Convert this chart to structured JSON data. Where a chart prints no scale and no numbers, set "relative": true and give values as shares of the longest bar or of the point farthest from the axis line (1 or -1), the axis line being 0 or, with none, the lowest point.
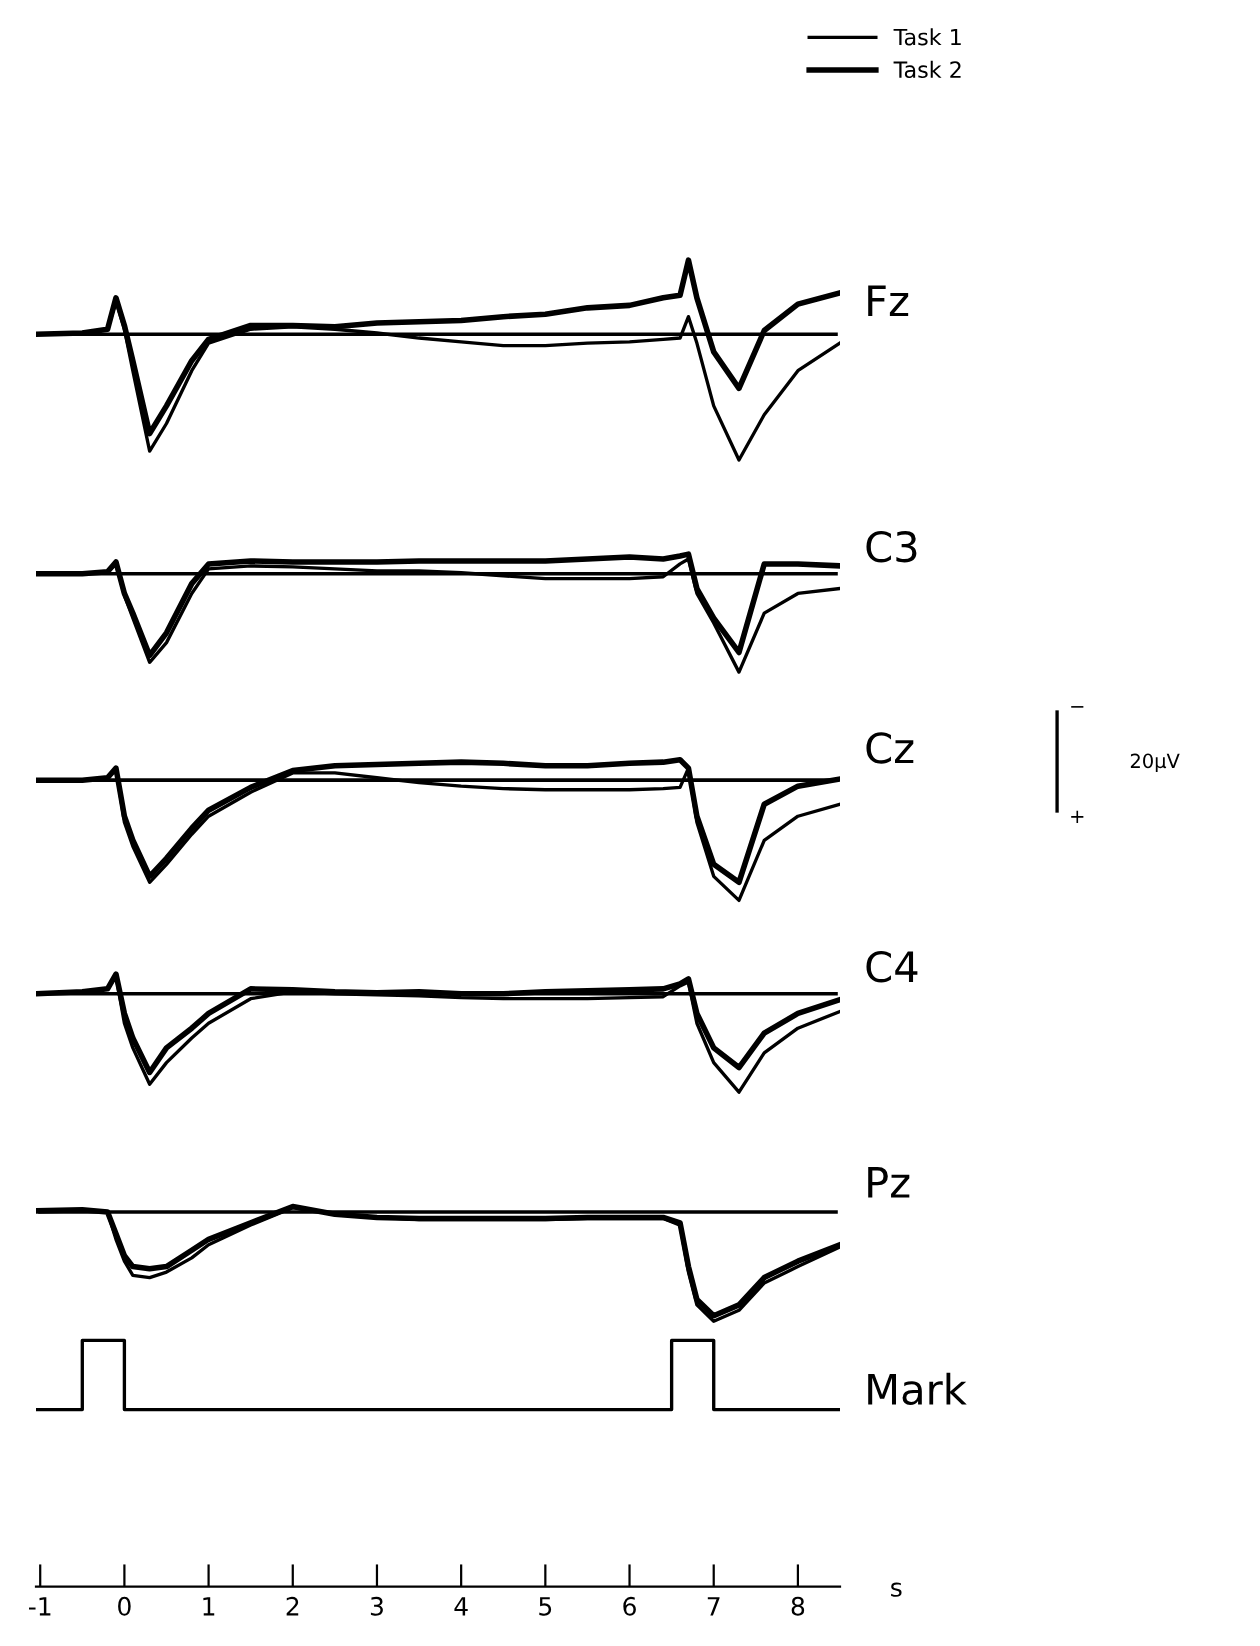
{
  "chart_data": [
    {
      "type": "line",
      "ylabel": "Fz",
      "relative": true,
      "xlim": [
        -1.05,
        8.5
      ],
      "tick_labels": false,
      "legend": "top right",
      "grid": false,
      "x": [
        -1.05,
        -0.5,
        -0.2,
        -0.1,
        0.0,
        0.1,
        0.3,
        0.5,
        0.8,
        1.0,
        1.5,
        2,
        2.5,
        3,
        3.5,
        4,
        4.5,
        5,
        5.5,
        6,
        6.4,
        6.6,
        6.7,
        6.8,
        7.0,
        7.3,
        7.6,
        8.0,
        8.5
      ],
      "series": [
        {
          "name": "Task 1",
          "color": "#000000",
          "values": [
            0,
            0.01,
            0.04,
            0.26,
            0.04,
            -0.29,
            -0.93,
            -0.71,
            -0.29,
            -0.07,
            0.04,
            0.06,
            0.04,
            0.01,
            -0.03,
            -0.06,
            -0.09,
            -0.09,
            -0.07,
            -0.06,
            -0.04,
            -0.03,
            0.14,
            -0.07,
            -0.57,
            -1,
            -0.64,
            -0.29,
            -0.07
          ]
        },
        {
          "name": "Task 2",
          "color": "#000000",
          "values": [
            0,
            0.01,
            0.04,
            0.29,
            0.07,
            -0.21,
            -0.79,
            -0.57,
            -0.21,
            -0.04,
            0.07,
            0.07,
            0.06,
            0.09,
            0.1,
            0.11,
            0.14,
            0.16,
            0.21,
            0.23,
            0.29,
            0.31,
            0.59,
            0.29,
            -0.14,
            -0.43,
            0.03,
            0.24,
            0.33
          ]
        }
      ]
    },
    {
      "type": "line",
      "ylabel": "C3",
      "relative": true,
      "xlim": [
        -1.05,
        8.5
      ],
      "tick_labels": false,
      "grid": false,
      "x": [
        -1.05,
        -0.5,
        -0.2,
        -0.1,
        0.0,
        0.1,
        0.3,
        0.5,
        0.8,
        1.0,
        1.5,
        2,
        2.5,
        3,
        3.5,
        4,
        4.5,
        5,
        5.5,
        6,
        6.4,
        6.6,
        6.7,
        6.8,
        7.0,
        7.3,
        7.6,
        8.0,
        8.5
      ],
      "series": [
        {
          "color": "#000000",
          "values": [
            0,
            0,
            0.02,
            0.1,
            -0.22,
            -0.45,
            -0.9,
            -0.7,
            -0.2,
            0.05,
            0.08,
            0.07,
            0.05,
            0.03,
            0.03,
            0.01,
            -0.02,
            -0.05,
            -0.05,
            -0.05,
            -0.03,
            0.1,
            0.15,
            -0.2,
            -0.5,
            -1,
            -0.4,
            -0.2,
            -0.15
          ]
        },
        {
          "color": "#000000",
          "values": [
            0,
            0,
            0.02,
            0.12,
            -0.2,
            -0.4,
            -0.83,
            -0.6,
            -0.1,
            0.1,
            0.13,
            0.12,
            0.12,
            0.12,
            0.13,
            0.13,
            0.13,
            0.13,
            0.15,
            0.17,
            0.15,
            0.18,
            0.2,
            -0.15,
            -0.45,
            -0.8,
            0.1,
            0.1,
            0.08
          ]
        }
      ]
    },
    {
      "type": "line",
      "ylabel": "Cz",
      "relative": true,
      "xlim": [
        -1.05,
        8.5
      ],
      "tick_labels": false,
      "grid": false,
      "annotations": [
        "−",
        "20µV",
        "+"
      ],
      "x": [
        -1.05,
        -0.5,
        -0.2,
        -0.1,
        0.0,
        0.1,
        0.3,
        0.5,
        0.8,
        1.0,
        1.5,
        2,
        2.5,
        3,
        3.5,
        4,
        4.5,
        5,
        5.5,
        6,
        6.4,
        6.6,
        6.7,
        6.8,
        7.0,
        7.3,
        7.6,
        8.0,
        8.5
      ],
      "series": [
        {
          "color": "#000000",
          "values": [
            0,
            0,
            0.02,
            0.1,
            -0.35,
            -0.55,
            -0.85,
            -0.7,
            -0.45,
            -0.3,
            -0.1,
            0.06,
            0.06,
            0.02,
            -0.02,
            -0.05,
            -0.07,
            -0.08,
            -0.08,
            -0.08,
            -0.07,
            -0.06,
            0.1,
            -0.35,
            -0.8,
            -1,
            -0.5,
            -0.3,
            -0.2
          ]
        },
        {
          "color": "#000000",
          "values": [
            0,
            0,
            0.02,
            0.1,
            -0.3,
            -0.5,
            -0.8,
            -0.65,
            -0.4,
            -0.25,
            -0.06,
            0.08,
            0.12,
            0.13,
            0.14,
            0.15,
            0.14,
            0.12,
            0.12,
            0.14,
            0.15,
            0.17,
            0.1,
            -0.3,
            -0.7,
            -0.85,
            -0.2,
            -0.05,
            0.01
          ]
        }
      ]
    },
    {
      "type": "line",
      "ylabel": "C4",
      "relative": true,
      "xlim": [
        -1.05,
        8.5
      ],
      "tick_labels": false,
      "grid": false,
      "x": [
        -1.05,
        -0.5,
        -0.2,
        -0.1,
        0.0,
        0.1,
        0.3,
        0.5,
        0.8,
        1.0,
        1.5,
        2,
        2.5,
        3,
        3.5,
        4,
        4.5,
        5,
        5.5,
        6,
        6.4,
        6.6,
        6.7,
        6.8,
        7.0,
        7.3,
        7.6,
        8.0,
        8.5
      ],
      "series": [
        {
          "color": "#000000",
          "values": [
            0,
            0.02,
            0.05,
            0.18,
            -0.3,
            -0.55,
            -0.92,
            -0.7,
            -0.45,
            -0.3,
            -0.05,
            0.02,
            0,
            -0.01,
            -0.02,
            -0.04,
            -0.05,
            -0.05,
            -0.05,
            -0.04,
            -0.03,
            0.08,
            0.12,
            -0.3,
            -0.7,
            -1,
            -0.6,
            -0.35,
            -0.18
          ]
        },
        {
          "color": "#000000",
          "values": [
            0,
            0.02,
            0.05,
            0.2,
            -0.2,
            -0.45,
            -0.8,
            -0.55,
            -0.35,
            -0.2,
            0.05,
            0.04,
            0.02,
            0.01,
            0.02,
            0,
            0,
            0.02,
            0.03,
            0.04,
            0.05,
            0.1,
            0.15,
            -0.2,
            -0.55,
            -0.75,
            -0.4,
            -0.2,
            -0.06
          ]
        }
      ]
    },
    {
      "type": "line",
      "ylabel": "Pz",
      "relative": true,
      "xlim": [
        -1.05,
        8.5
      ],
      "tick_labels": false,
      "grid": false,
      "x": [
        -1.05,
        -0.5,
        -0.2,
        -0.1,
        0.0,
        0.1,
        0.3,
        0.5,
        0.8,
        1.0,
        1.5,
        2,
        2.5,
        3,
        3.5,
        4,
        4.5,
        5,
        5.5,
        6,
        6.4,
        6.6,
        6.7,
        6.8,
        7.0,
        7.3,
        7.6,
        8.0,
        8.5
      ],
      "series": [
        {
          "color": "#000000",
          "values": [
            0.01,
            0.02,
            0,
            -0.25,
            -0.45,
            -0.58,
            -0.6,
            -0.55,
            -0.42,
            -0.3,
            -0.12,
            0.04,
            -0.02,
            -0.05,
            -0.07,
            -0.07,
            -0.07,
            -0.07,
            -0.06,
            -0.06,
            -0.06,
            -0.12,
            -0.55,
            -0.85,
            -1,
            -0.9,
            -0.65,
            -0.5,
            -0.32
          ]
        },
        {
          "color": "#000000",
          "values": [
            0.01,
            0.02,
            0,
            -0.2,
            -0.4,
            -0.5,
            -0.52,
            -0.5,
            -0.35,
            -0.25,
            -0.1,
            0.05,
            -0.02,
            -0.05,
            -0.06,
            -0.06,
            -0.06,
            -0.06,
            -0.05,
            -0.05,
            -0.05,
            -0.1,
            -0.5,
            -0.8,
            -0.95,
            -0.85,
            -0.6,
            -0.45,
            -0.3
          ]
        }
      ]
    },
    {
      "type": "line",
      "ylabel": "Mark",
      "relative": true,
      "xlim": [
        -1.05,
        8.5
      ],
      "tick_labels": "x",
      "grid": false,
      "xlabel": "s",
      "xticks": [
        -1,
        0,
        1,
        2,
        3,
        4,
        5,
        6,
        7,
        8
      ],
      "x": [
        -1.05,
        -0.5,
        -0.5,
        0,
        0,
        6.5,
        6.5,
        7.0,
        7.0,
        8.5
      ],
      "series": [
        {
          "color": "#000000",
          "values": [
            0,
            0,
            1,
            1,
            0,
            0,
            1,
            1,
            0,
            0
          ]
        }
      ]
    }
  ]
}
